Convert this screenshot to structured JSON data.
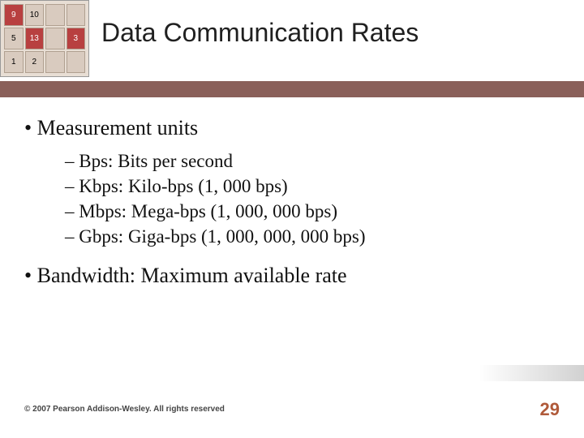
{
  "title": "Data Communication Rates",
  "bullets": {
    "b1": "Measurement units",
    "sub": {
      "s1": "Bps:  Bits per second",
      "s2": "Kbps:  Kilo-bps (1, 000 bps)",
      "s3": "Mbps:  Mega-bps (1, 000, 000 bps)",
      "s4": "Gbps:  Giga-bps (1, 000, 000, 000 bps)"
    },
    "b2": "Bandwidth: Maximum available rate"
  },
  "footer": "© 2007 Pearson Addison-Wesley. All rights reserved",
  "page": "29",
  "deco": {
    "c1": "9",
    "c2": "10",
    "c3": "",
    "c4": "",
    "c5": "5",
    "c6": "13",
    "c7": "",
    "c8": "3",
    "c9": "1",
    "c10": "2",
    "c11": "",
    "c12": ""
  },
  "colors": {
    "bar": "#8a605a",
    "pagenum": "#b05a3a"
  }
}
